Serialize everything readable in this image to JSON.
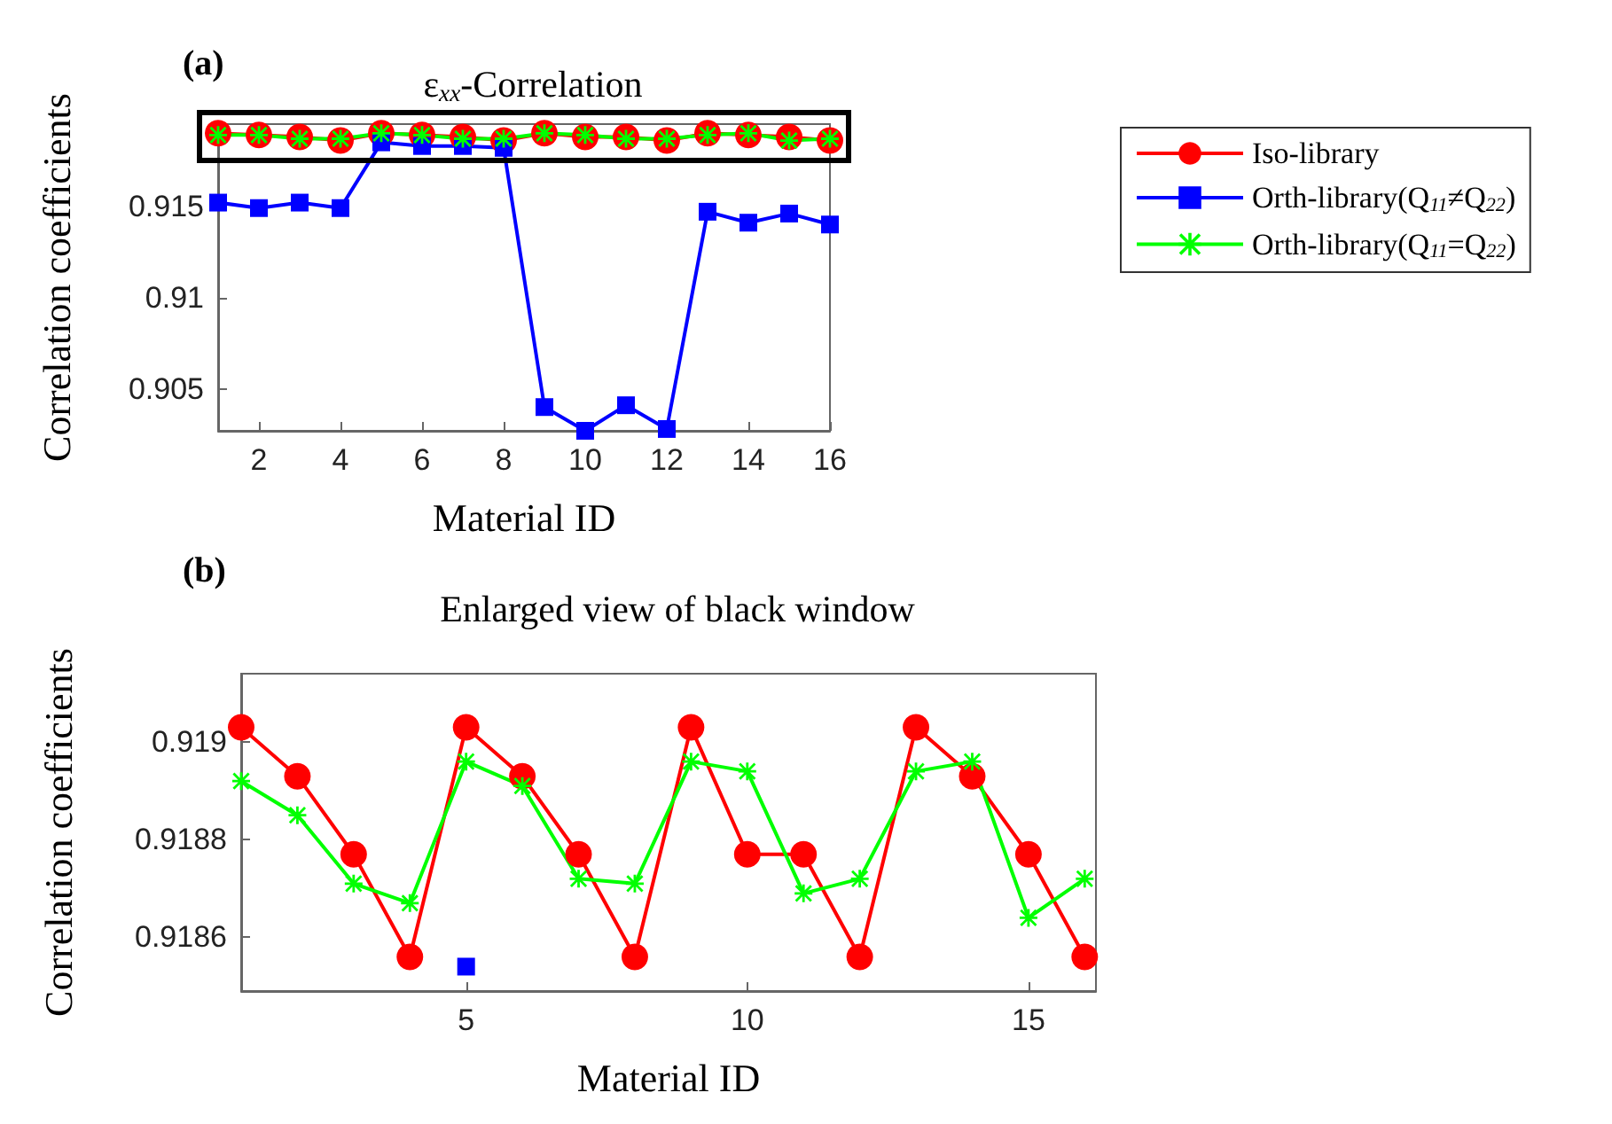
{
  "chart_data": [
    {
      "type": "line",
      "title": "ε$_{xx}$-Correlation",
      "xlabel": "Material ID",
      "ylabel": "Correlation coefficients",
      "annotations": [
        "(a)"
      ],
      "x": [
        1,
        2,
        3,
        4,
        5,
        6,
        7,
        8,
        9,
        10,
        11,
        12,
        13,
        14,
        15,
        16
      ],
      "xlim": [
        1,
        16
      ],
      "ylim": [
        0.9027,
        0.9195
      ],
      "xticks": [
        2,
        4,
        6,
        8,
        10,
        12,
        14,
        16
      ],
      "yticks": [
        0.905,
        0.91,
        0.915
      ],
      "legend": "right",
      "grid": false,
      "series": [
        {
          "name": "Iso-library",
          "color": "#ff0000",
          "marker": "circle",
          "values": [
            0.919,
            0.9189,
            0.9188,
            0.9186,
            0.919,
            0.9189,
            0.9188,
            0.9186,
            0.919,
            0.9188,
            0.9188,
            0.9186,
            0.919,
            0.9189,
            0.9188,
            0.9186
          ]
        },
        {
          "name": "Orth-library(Q$_{11}$≠Q$_{22}$)",
          "color": "#0000ff",
          "marker": "square",
          "values": [
            0.9152,
            0.9149,
            0.9152,
            0.9149,
            0.9185,
            0.9183,
            0.9183,
            0.9182,
            0.904,
            0.9027,
            0.9041,
            0.9028,
            0.9147,
            0.9141,
            0.9146,
            0.914
          ]
        },
        {
          "name": "Orth-library(Q$_{11}$=Q$_{22}$)",
          "color": "#00ff00",
          "marker": "cross",
          "values": [
            0.9189,
            0.9189,
            0.9187,
            0.9187,
            0.919,
            0.9189,
            0.9187,
            0.9187,
            0.919,
            0.9189,
            0.9187,
            0.9187,
            0.9189,
            0.919,
            0.9186,
            0.9187
          ]
        }
      ]
    },
    {
      "type": "line",
      "title": "Enlarged view of black window",
      "xlabel": "Material ID",
      "ylabel": "Correlation coefficients",
      "annotations": [
        "(b)"
      ],
      "x": [
        1,
        2,
        3,
        4,
        5,
        6,
        7,
        8,
        9,
        10,
        11,
        12,
        13,
        14,
        15,
        16
      ],
      "xlim": [
        1,
        16.2
      ],
      "ylim": [
        0.91849,
        0.91914
      ],
      "xticks": [
        5,
        10,
        15
      ],
      "yticks": [
        0.9186,
        0.9188,
        0.919
      ],
      "legend": false,
      "grid": false,
      "series": [
        {
          "color": "#ff0000",
          "marker": "circle",
          "values": [
            0.91903,
            0.91893,
            0.91877,
            0.91856,
            0.91903,
            0.91893,
            0.91877,
            0.91856,
            0.91903,
            0.91877,
            0.91877,
            0.91856,
            0.91903,
            0.91893,
            0.91877,
            0.91856
          ]
        },
        {
          "color": "#0000ff",
          "marker": "square",
          "values": [
            null,
            null,
            null,
            null,
            0.91854,
            null,
            null,
            null,
            null,
            null,
            null,
            null,
            null,
            null,
            null,
            null
          ]
        },
        {
          "color": "#00ff00",
          "marker": "cross",
          "values": [
            0.91892,
            0.91885,
            0.91871,
            0.91867,
            0.91896,
            0.91891,
            0.91872,
            0.91871,
            0.91896,
            0.91894,
            0.91869,
            0.91872,
            0.91894,
            0.91896,
            0.91864,
            0.91872
          ]
        }
      ]
    }
  ]
}
